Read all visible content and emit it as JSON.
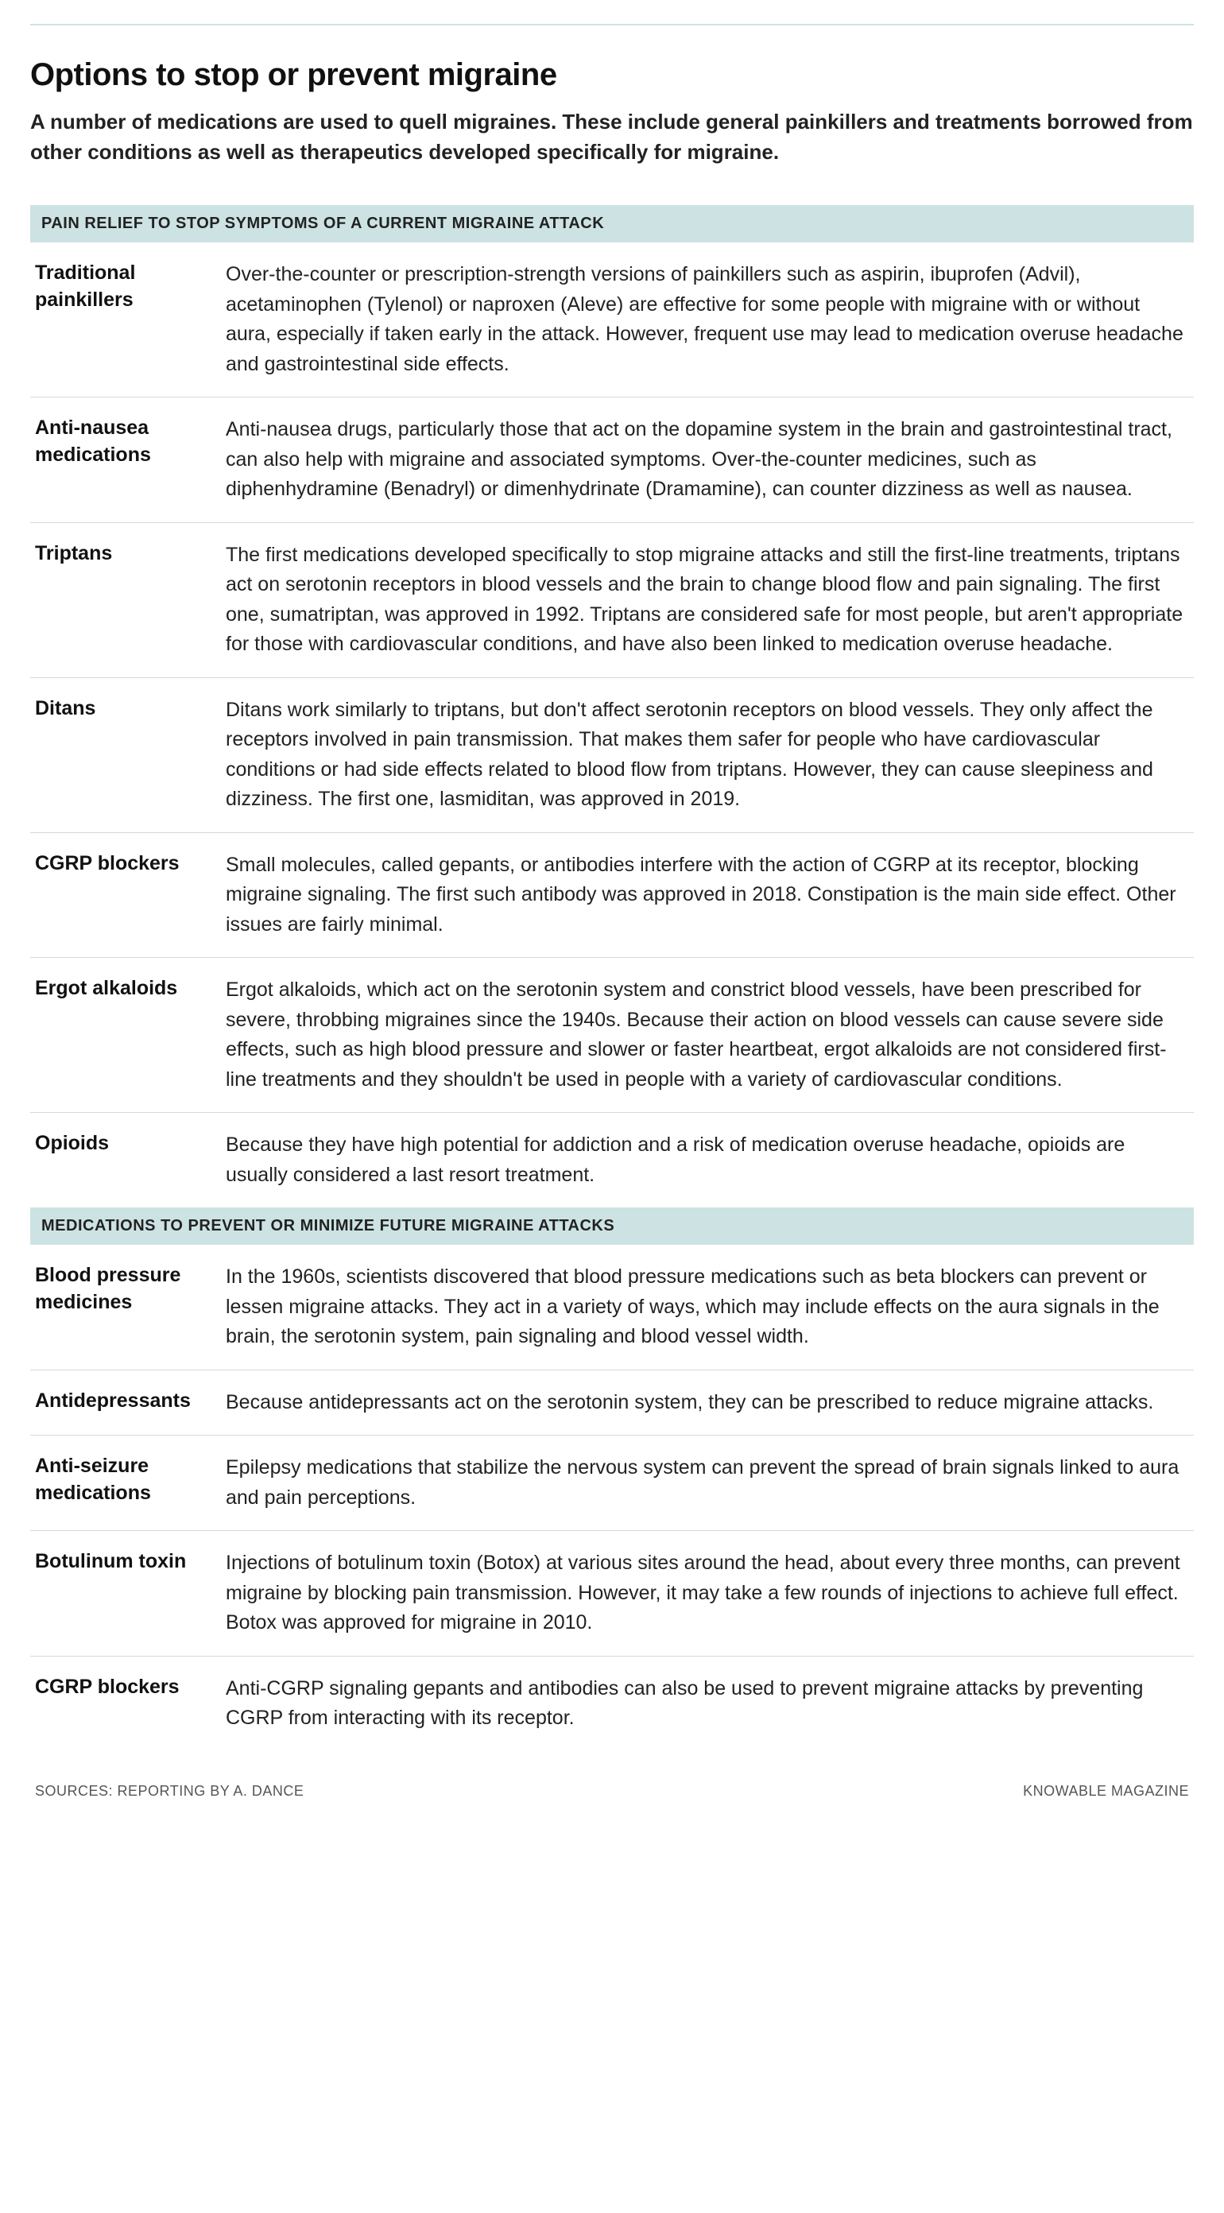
{
  "title": "Options to stop or prevent migraine",
  "subtitle": "A number of medications are used to quell migraines. These include general painkillers and treatments borrowed from other conditions as well as therapeutics developed specifically for migraine.",
  "colors": {
    "header_bg": "#cde3e3",
    "rule": "#cde3e3",
    "divider": "#d8d8d8",
    "text": "#222222",
    "title": "#111111",
    "footer": "#555555",
    "background": "#ffffff"
  },
  "typography": {
    "title_fontsize": 40,
    "subtitle_fontsize": 26,
    "section_header_fontsize": 20,
    "body_fontsize": 25,
    "footer_fontsize": 18
  },
  "sections": [
    {
      "header": "PAIN RELIEF TO STOP SYMPTOMS OF A CURRENT MIGRAINE ATTACK",
      "rows": [
        {
          "name": "Traditional painkillers",
          "desc": "Over-the-counter or prescription-strength versions of painkillers such as aspirin, ibuprofen (Advil), acetaminophen (Tylenol) or naproxen (Aleve) are effective for some people with migraine with or without aura, especially if taken early in the attack. However, frequent use may lead to medication overuse headache and gastrointestinal side effects."
        },
        {
          "name": "Anti-nausea medications",
          "desc": "Anti-nausea drugs, particularly those that act on the dopamine system in the brain and gastrointestinal tract, can also help with migraine and associated symptoms. Over-the-counter medicines, such as diphenhydramine (Benadryl) or dimenhydrinate (Dramamine), can counter dizziness as well as nausea."
        },
        {
          "name": "Triptans",
          "desc": "The first medications developed specifically to stop migraine attacks and still the first-line treatments, triptans act on serotonin receptors in blood vessels and the brain to change blood flow and pain signaling. The first one, sumatriptan, was approved in 1992. Triptans are considered safe for most people, but aren't appropriate for those with cardiovascular conditions, and have also been linked to medication overuse headache."
        },
        {
          "name": "Ditans",
          "desc": "Ditans work similarly to triptans, but don't affect serotonin receptors on blood vessels. They only affect the receptors involved in pain transmission. That makes them safer for people who have cardiovascular conditions or had side effects related to blood flow from triptans. However, they can cause sleepiness and dizziness. The first one, lasmiditan, was approved in 2019."
        },
        {
          "name": "CGRP blockers",
          "desc": "Small molecules, called gepants, or antibodies interfere with the action of CGRP at its receptor, blocking migraine signaling. The first such antibody was approved in 2018. Constipation is the main side effect. Other issues are fairly minimal."
        },
        {
          "name": "Ergot alkaloids",
          "desc": "Ergot alkaloids, which act on the serotonin system and constrict blood vessels, have been prescribed for severe, throbbing migraines since the 1940s. Because their action on blood vessels can cause severe side effects, such as high blood pressure and slower or faster heartbeat, ergot alkaloids are not considered first-line treatments and they shouldn't be used in people with a variety of cardiovascular conditions."
        },
        {
          "name": "Opioids",
          "desc": "Because they have high potential for addiction and a risk of medication overuse headache, opioids are usually considered a last resort treatment."
        }
      ]
    },
    {
      "header": "MEDICATIONS TO PREVENT OR MINIMIZE FUTURE MIGRAINE ATTACKS",
      "rows": [
        {
          "name": "Blood pressure medicines",
          "desc": "In the 1960s, scientists discovered that blood pressure medications such as beta blockers can prevent or lessen migraine attacks. They act in a variety of ways, which may include effects on the aura signals in the brain, the serotonin system, pain signaling and blood vessel width."
        },
        {
          "name": "Antidepressants",
          "desc": "Because antidepressants act on the serotonin system, they can be prescribed to reduce migraine attacks."
        },
        {
          "name": "Anti-seizure medications",
          "desc": "Epilepsy medications that stabilize the nervous system can prevent the spread of brain signals linked to aura and pain perceptions."
        },
        {
          "name": "Botulinum toxin",
          "desc": "Injections of botulinum toxin (Botox) at various sites around the head, about every three months, can prevent migraine by blocking pain transmission. However, it may take a few rounds of injections to achieve full effect. Botox was approved for migraine in 2010."
        },
        {
          "name": "CGRP blockers",
          "desc": "Anti-CGRP signaling gepants and antibodies can also be used to prevent migraine attacks by preventing CGRP from interacting with its receptor."
        }
      ]
    }
  ],
  "footer": {
    "left": "SOURCES: REPORTING BY A. DANCE",
    "right": "KNOWABLE MAGAZINE"
  }
}
